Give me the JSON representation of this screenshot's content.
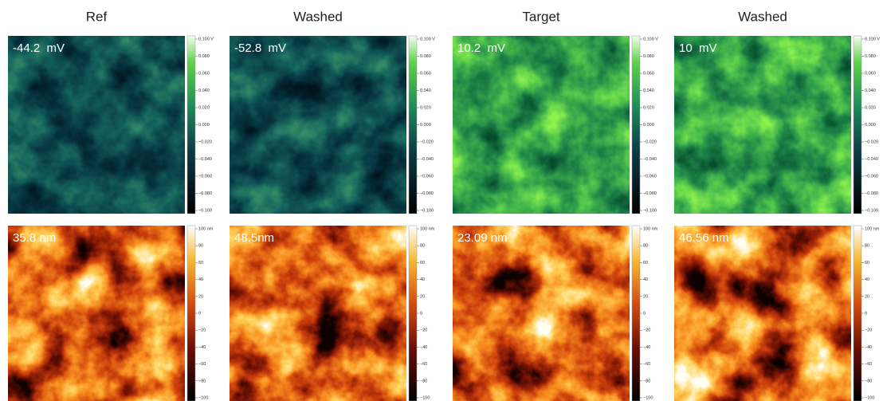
{
  "columns": [
    {
      "title": "Ref",
      "potential_label": "-44.2  mV",
      "height_label": "35.8 nm"
    },
    {
      "title": "Washed",
      "potential_label": "-52.8  mV",
      "height_label": "48.5nm"
    },
    {
      "title": "Target",
      "potential_label": "10.2  mV",
      "height_label": "23.09 nm"
    },
    {
      "title": "Washed",
      "potential_label": "10  mV",
      "height_label": "46.56 nm"
    }
  ],
  "potential_scale": {
    "ticks": [
      "0.100 V",
      "0.080",
      "0.060",
      "0.040",
      "0.020",
      "0.000",
      "−0.020",
      "−0.040",
      "−0.060",
      "−0.080",
      "−0.100"
    ]
  },
  "height_scale": {
    "ticks": [
      "100 nm",
      "80",
      "60",
      "40",
      "20",
      "0",
      "−20",
      "−40",
      "−60",
      "−80",
      "−100"
    ]
  }
}
